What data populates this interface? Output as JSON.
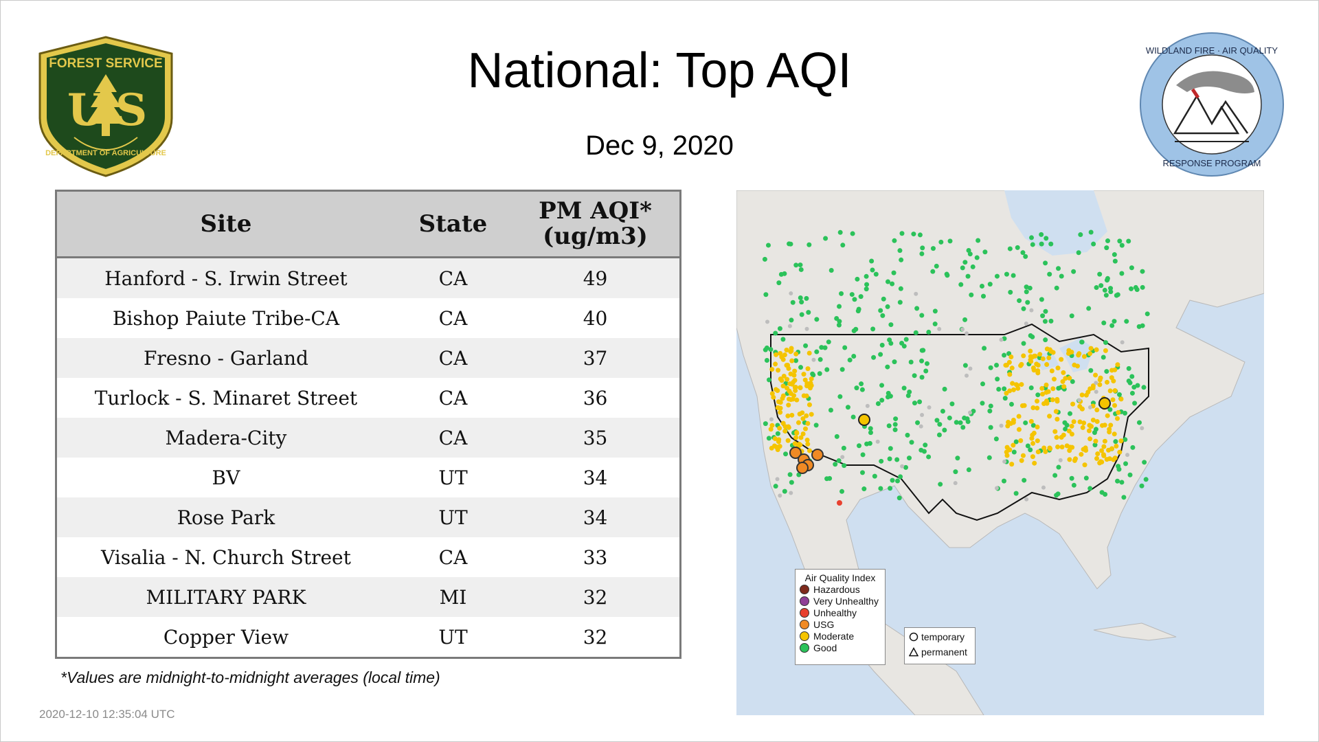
{
  "title": "National: Top AQI",
  "date": "Dec  9, 2020",
  "logos": {
    "forest_service": {
      "top_text": "FOREST SERVICE",
      "letters": "US",
      "bottom_text": "DEPARTMENT OF AGRICULTURE"
    },
    "wildland": {
      "top_text": "WILDLAND FIRE · AIR QUALITY",
      "bottom_text": "RESPONSE PROGRAM"
    }
  },
  "table": {
    "headers": {
      "site": "Site",
      "state": "State",
      "value_line1": "PM AQI*",
      "value_line2": "(ug/m3)"
    },
    "rows": [
      {
        "site": "Hanford - S. Irwin Street",
        "state": "CA",
        "value": "49"
      },
      {
        "site": "Bishop Paiute Tribe-CA",
        "state": "CA",
        "value": "40"
      },
      {
        "site": "Fresno - Garland",
        "state": "CA",
        "value": "37"
      },
      {
        "site": "Turlock - S. Minaret Street",
        "state": "CA",
        "value": "36"
      },
      {
        "site": "Madera-City",
        "state": "CA",
        "value": "35"
      },
      {
        "site": "BV",
        "state": "UT",
        "value": "34"
      },
      {
        "site": "Rose Park",
        "state": "UT",
        "value": "34"
      },
      {
        "site": "Visalia - N. Church Street",
        "state": "CA",
        "value": "33"
      },
      {
        "site": "MILITARY PARK",
        "state": "MI",
        "value": "32"
      },
      {
        "site": "Copper View",
        "state": "UT",
        "value": "32"
      }
    ]
  },
  "footnote": "*Values are midnight-to-midnight averages (local time)",
  "timestamp": "2020-12-10 12:35:04 UTC",
  "map": {
    "legend_title": "Air Quality Index",
    "legend_items": [
      {
        "label": "Hazardous",
        "color": "#7e2a1c"
      },
      {
        "label": "Very Unhealthy",
        "color": "#8f3f97"
      },
      {
        "label": "Unhealthy",
        "color": "#e8412f"
      },
      {
        "label": "USG",
        "color": "#f08a24"
      },
      {
        "label": "Moderate",
        "color": "#f5c400"
      },
      {
        "label": "Good",
        "color": "#2bc25a"
      }
    ],
    "symbols": [
      {
        "label": "temporary",
        "shape": "circle"
      },
      {
        "label": "permanent",
        "shape": "triangle"
      }
    ],
    "colors": {
      "good": "#2bc25a",
      "moderate": "#f5c400",
      "usg": "#f08a24",
      "unhealthy": "#e8412f",
      "nodata": "#bdbdbd"
    }
  }
}
